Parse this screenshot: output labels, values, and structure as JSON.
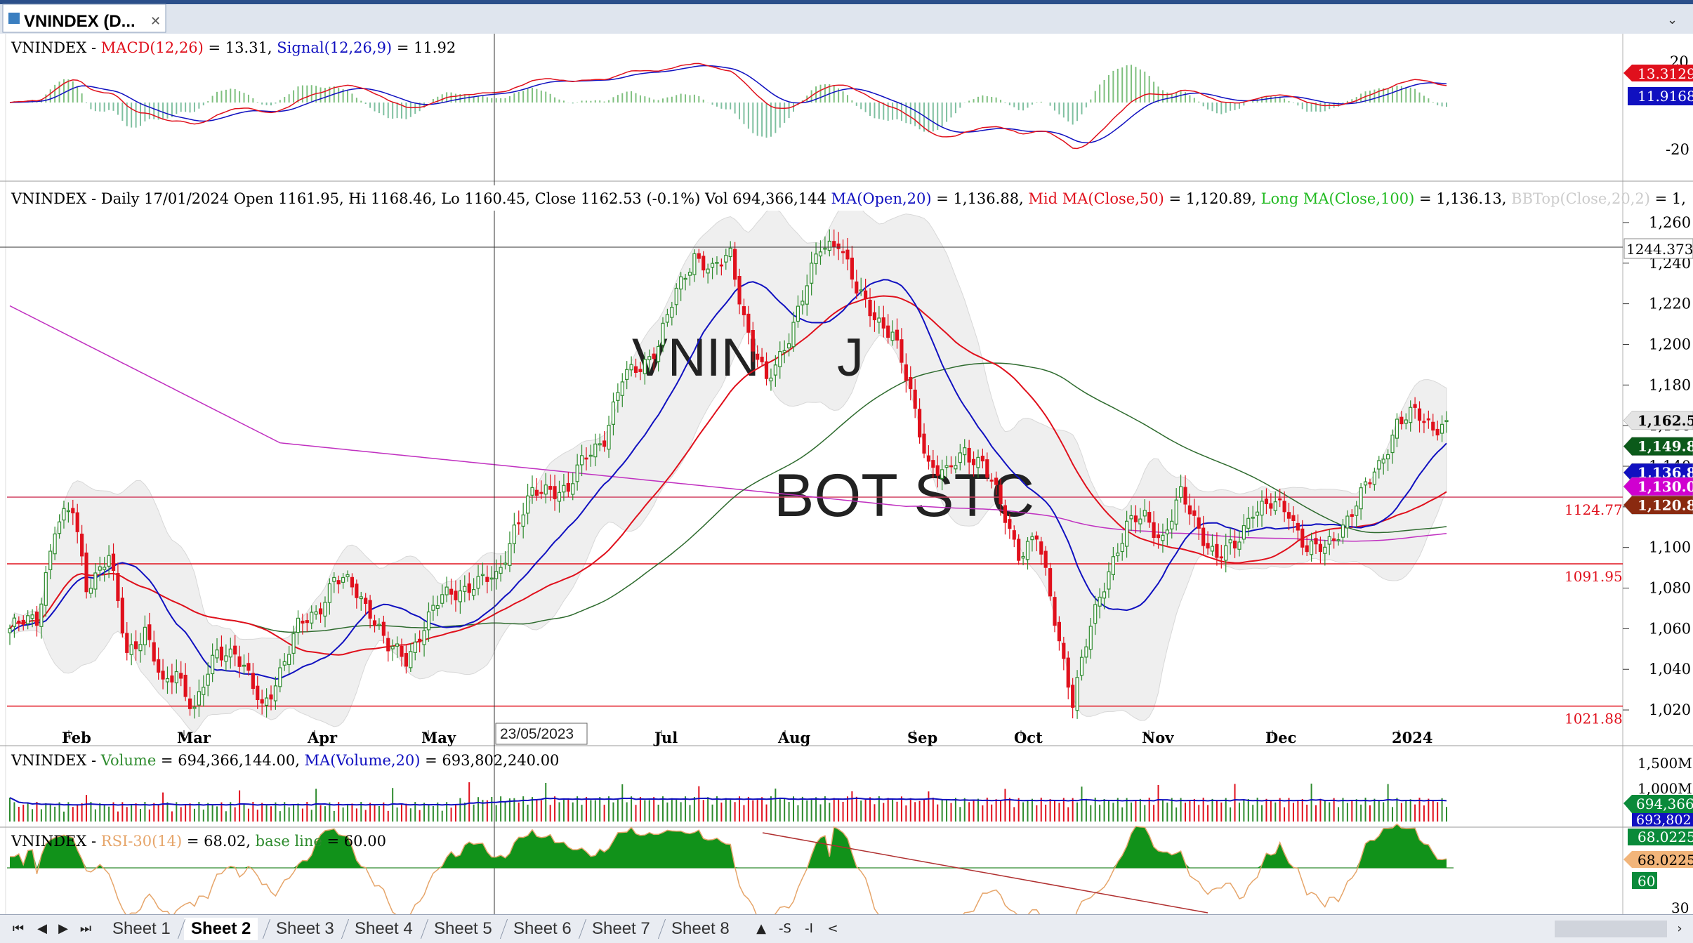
{
  "window": {
    "title": "VNINDEX (D..."
  },
  "colors": {
    "up": "#2e8b2e",
    "down": "#e0101c",
    "ma20": "#1010c0",
    "ma50": "#e0101c",
    "ma100": "#2e6b2e",
    "ma200": "#c030c0",
    "hline": "#e0101c",
    "band": "#f0f0f0"
  },
  "macd_panel": {
    "title": "VNINDEX",
    "sep": " - ",
    "macd_label": "MACD(12,26)",
    "macd_value": " = 13.31, ",
    "signal_label": "Signal(12,26,9)",
    "signal_value": " = 11.92",
    "axis_ticks": [
      "20",
      "-20"
    ],
    "badge_macd": "13.3129",
    "badge_signal": "11.9168"
  },
  "price_panel": {
    "title": "VNINDEX",
    "info": " - Daily 17/01/2024 Open 1161.95, Hi 1168.46, Lo 1160.45, Close 1162.53 (-0.1%) Vol 694,366,144 ",
    "ma_open_label": "MA(Open,20)",
    "ma_open_value": " = 1,136.88, ",
    "mid_ma_label": "Mid MA(Close,50)",
    "mid_ma_value": " = 1,120.89, ",
    "long_ma_label": "Long MA(Close,100)",
    "long_ma_value": " = 1,136.13, ",
    "bb_label": "BBTop(Close,20,2)",
    "bb_value": " = 1,",
    "watermark_1": "VNIN",
    "watermark_2": "J",
    "watermark_3": "BOT STC",
    "crosshair_value": "1244.373",
    "crosshair_date": "23/05/2023",
    "hline_labels": [
      "1124.77",
      "1091.95",
      "1021.88"
    ],
    "badges": [
      "1,162.5",
      "1,149.8",
      "1,136.8",
      "1,130.0",
      "1,120.8"
    ]
  },
  "volume_panel": {
    "title": "VNINDEX",
    "sep": " - ",
    "vol_label": "Volume",
    "vol_value": " = 694,366,144.00, ",
    "ma_label": "MA(Volume,20)",
    "ma_value": " = 693,802,240.00",
    "axis_ticks": [
      "1,500M",
      "1,000M"
    ],
    "badge": "694,366",
    "badge_ma": "693,802"
  },
  "rsi_panel": {
    "title": "VNINDEX",
    "sep": " - ",
    "rsi_label": "RSI-30(14)",
    "rsi_value": " = 68.02, ",
    "base_label": "base line",
    "base_value": " = 60.00",
    "axis_ticks": [
      "30"
    ],
    "badge_top": "68.0225",
    "badge_rsi": "68.0225",
    "badge_base": "60"
  },
  "tabs": [
    "Sheet 1",
    "Sheet 2",
    "Sheet 3",
    "Sheet 4",
    "Sheet 5",
    "Sheet 6",
    "Sheet 7",
    "Sheet 8"
  ],
  "active_tab": "Sheet 2",
  "tab_tools": [
    "▲",
    "-S",
    "-I",
    "<"
  ],
  "chart_data": {
    "type": "candlestick",
    "timeframe": "Daily",
    "x_labels": [
      "Feb",
      "Mar",
      "Apr",
      "May",
      "Jul",
      "Aug",
      "Sep",
      "Oct",
      "Nov",
      "Dec",
      "2024"
    ],
    "y_ticks": [
      "1,260",
      "1,240",
      "1,220",
      "1,200",
      "1,180",
      "1,160",
      "1,140",
      "1,120",
      "1,100",
      "1,080",
      "1,060",
      "1,040",
      "1,020"
    ],
    "ylim": [
      1010,
      1270
    ],
    "horizontal_lines": [
      1124.77,
      1091.95,
      1021.88
    ],
    "close_path": [
      [
        0,
        1060
      ],
      [
        6,
        1065
      ],
      [
        10,
        1110
      ],
      [
        14,
        1118
      ],
      [
        17,
        1082
      ],
      [
        22,
        1095
      ],
      [
        26,
        1048
      ],
      [
        30,
        1060
      ],
      [
        34,
        1030
      ],
      [
        37,
        1040
      ],
      [
        41,
        1020
      ],
      [
        46,
        1048
      ],
      [
        50,
        1050
      ],
      [
        56,
        1020
      ],
      [
        60,
        1040
      ],
      [
        64,
        1060
      ],
      [
        68,
        1068
      ],
      [
        72,
        1085
      ],
      [
        76,
        1080
      ],
      [
        80,
        1070
      ],
      [
        84,
        1050
      ],
      [
        88,
        1045
      ],
      [
        92,
        1062
      ],
      [
        96,
        1075
      ],
      [
        100,
        1080
      ],
      [
        104,
        1082
      ],
      [
        108,
        1085
      ],
      [
        112,
        1110
      ],
      [
        116,
        1125
      ],
      [
        120,
        1130
      ],
      [
        124,
        1128
      ],
      [
        128,
        1145
      ],
      [
        132,
        1155
      ],
      [
        136,
        1182
      ],
      [
        140,
        1190
      ],
      [
        144,
        1200
      ],
      [
        148,
        1225
      ],
      [
        152,
        1245
      ],
      [
        156,
        1235
      ],
      [
        160,
        1245
      ],
      [
        164,
        1205
      ],
      [
        168,
        1180
      ],
      [
        172,
        1200
      ],
      [
        176,
        1222
      ],
      [
        180,
        1248
      ],
      [
        184,
        1252
      ],
      [
        188,
        1225
      ],
      [
        192,
        1215
      ],
      [
        196,
        1205
      ],
      [
        200,
        1175
      ],
      [
        204,
        1142
      ],
      [
        208,
        1135
      ],
      [
        212,
        1148
      ],
      [
        216,
        1142
      ],
      [
        220,
        1120
      ],
      [
        224,
        1098
      ],
      [
        228,
        1105
      ],
      [
        232,
        1065
      ],
      [
        236,
        1025
      ],
      [
        240,
        1060
      ],
      [
        244,
        1090
      ],
      [
        248,
        1110
      ],
      [
        252,
        1115
      ],
      [
        256,
        1105
      ],
      [
        260,
        1125
      ],
      [
        264,
        1110
      ],
      [
        268,
        1095
      ],
      [
        272,
        1100
      ],
      [
        276,
        1120
      ],
      [
        280,
        1120
      ],
      [
        284,
        1118
      ],
      [
        288,
        1100
      ],
      [
        292,
        1098
      ],
      [
        296,
        1112
      ],
      [
        300,
        1125
      ],
      [
        304,
        1140
      ],
      [
        308,
        1162
      ],
      [
        312,
        1165
      ],
      [
        316,
        1160
      ],
      [
        319,
        1162.53
      ]
    ],
    "last": {
      "date": "17/01/2024",
      "open": 1161.95,
      "high": 1168.46,
      "low": 1160.45,
      "close": 1162.53,
      "change_pct": -0.1,
      "volume": 694366144
    },
    "indicators": {
      "ma_open_20": 1136.88,
      "mid_ma_close_50": 1120.89,
      "long_ma_close_100": 1136.13,
      "macd": 13.31,
      "macd_signal": 11.92,
      "volume_ma_20": 693802240,
      "rsi_14": 68.02,
      "rsi_base_line": 60.0
    }
  }
}
